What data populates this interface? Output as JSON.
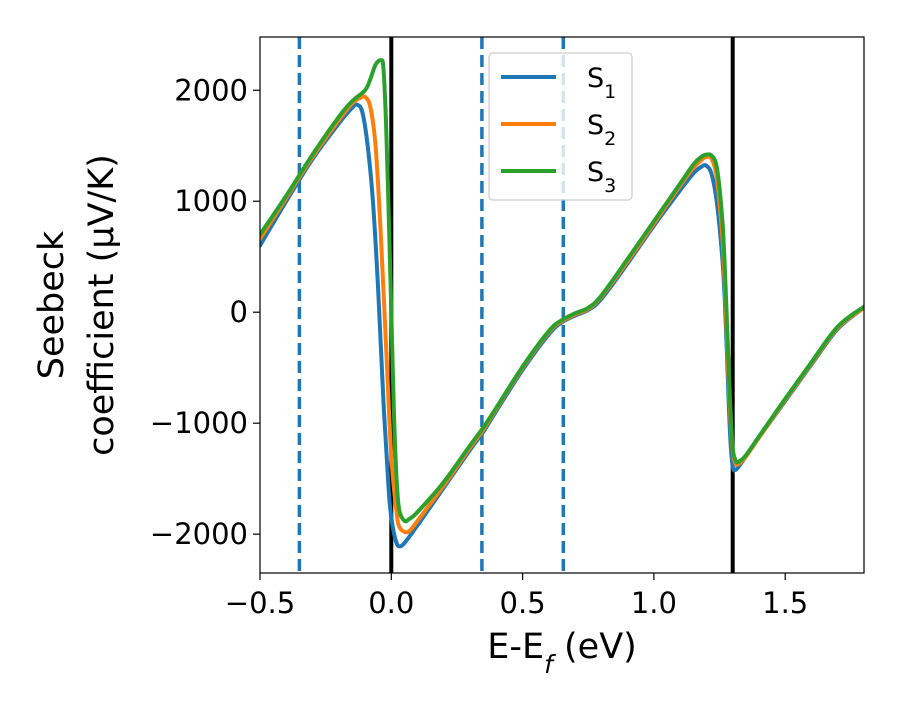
{
  "chart_data": {
    "type": "line",
    "xlabel": "E-E_f (eV)",
    "ylabel_line1": "Seebeck",
    "ylabel_line2": "coefficient  (μV/K)",
    "xlim": [
      -0.5,
      1.8
    ],
    "ylim": [
      -2350,
      2480
    ],
    "xticks": [
      -0.5,
      0.0,
      0.5,
      1.0,
      1.5
    ],
    "xtick_labels": [
      "−0.5",
      "0.0",
      "0.5",
      "1.0",
      "1.5"
    ],
    "yticks": [
      -2000,
      -1000,
      0,
      1000,
      2000
    ],
    "ytick_labels": [
      "−2000",
      "−1000",
      "0",
      "1000",
      "2000"
    ],
    "grid": false,
    "legend_position": "top-center",
    "series": [
      {
        "name": "S_1",
        "color": "#1f77b4",
        "x": [
          -0.5,
          -0.4,
          -0.3,
          -0.2,
          -0.15,
          -0.13,
          -0.11,
          -0.09,
          -0.07,
          -0.05,
          -0.03,
          -0.01,
          0.0,
          0.01,
          0.02,
          0.03,
          0.05,
          0.1,
          0.2,
          0.3,
          0.35,
          0.4,
          0.5,
          0.6,
          0.65,
          0.7,
          0.75,
          0.8,
          0.9,
          1.0,
          1.1,
          1.15,
          1.18,
          1.2,
          1.22,
          1.24,
          1.26,
          1.27,
          1.28,
          1.29,
          1.3,
          1.31,
          1.32,
          1.35,
          1.4,
          1.5,
          1.6,
          1.7,
          1.8
        ],
        "y": [
          600,
          1000,
          1380,
          1700,
          1840,
          1870,
          1800,
          1500,
          1000,
          200,
          -800,
          -1600,
          -1850,
          -1990,
          -2080,
          -2110,
          -2080,
          -1920,
          -1580,
          -1240,
          -1080,
          -890,
          -520,
          -200,
          -90,
          -30,
          20,
          120,
          440,
          780,
          1100,
          1250,
          1310,
          1320,
          1240,
          980,
          500,
          100,
          -500,
          -1100,
          -1390,
          -1420,
          -1400,
          -1300,
          -1130,
          -800,
          -470,
          -150,
          40
        ]
      },
      {
        "name": "S_2",
        "color": "#ff7f0e",
        "x": [
          -0.5,
          -0.4,
          -0.3,
          -0.2,
          -0.15,
          -0.12,
          -0.1,
          -0.08,
          -0.06,
          -0.04,
          -0.02,
          0.0,
          0.02,
          0.03,
          0.05,
          0.07,
          0.1,
          0.2,
          0.3,
          0.35,
          0.4,
          0.5,
          0.6,
          0.65,
          0.7,
          0.75,
          0.8,
          0.9,
          1.0,
          1.1,
          1.15,
          1.18,
          1.2,
          1.22,
          1.24,
          1.26,
          1.27,
          1.28,
          1.29,
          1.3,
          1.31,
          1.32,
          1.35,
          1.4,
          1.5,
          1.6,
          1.7,
          1.8
        ],
        "y": [
          660,
          1030,
          1400,
          1730,
          1880,
          1930,
          1940,
          1850,
          1500,
          700,
          -300,
          -1300,
          -1800,
          -1930,
          -1980,
          -1970,
          -1880,
          -1560,
          -1220,
          -1060,
          -870,
          -500,
          -180,
          -80,
          -20,
          30,
          140,
          460,
          800,
          1140,
          1300,
          1370,
          1400,
          1380,
          1200,
          700,
          250,
          -350,
          -900,
          -1250,
          -1360,
          -1370,
          -1300,
          -1130,
          -790,
          -460,
          -140,
          40
        ]
      },
      {
        "name": "S_3",
        "color": "#2ca02c",
        "x": [
          -0.5,
          -0.4,
          -0.3,
          -0.2,
          -0.15,
          -0.1,
          -0.08,
          -0.06,
          -0.04,
          -0.03,
          -0.02,
          -0.01,
          0.0,
          0.01,
          0.02,
          0.03,
          0.05,
          0.07,
          0.1,
          0.2,
          0.3,
          0.35,
          0.4,
          0.5,
          0.6,
          0.65,
          0.7,
          0.75,
          0.8,
          0.9,
          1.0,
          1.1,
          1.15,
          1.18,
          1.2,
          1.22,
          1.24,
          1.26,
          1.27,
          1.28,
          1.29,
          1.3,
          1.31,
          1.32,
          1.35,
          1.4,
          1.5,
          1.6,
          1.7,
          1.8
        ],
        "y": [
          700,
          1050,
          1420,
          1760,
          1900,
          2000,
          2100,
          2230,
          2270,
          2200,
          1700,
          900,
          0,
          -900,
          -1500,
          -1780,
          -1880,
          -1860,
          -1800,
          -1530,
          -1200,
          -1040,
          -860,
          -490,
          -170,
          -70,
          -10,
          40,
          150,
          480,
          820,
          1160,
          1330,
          1400,
          1420,
          1410,
          1300,
          850,
          400,
          -200,
          -800,
          -1220,
          -1330,
          -1350,
          -1290,
          -1120,
          -780,
          -450,
          -130,
          50
        ]
      }
    ],
    "vlines": [
      {
        "x": -0.35,
        "style": "dashed",
        "color": "#1f77b4"
      },
      {
        "x": 0.0,
        "style": "solid",
        "color": "#000000"
      },
      {
        "x": 0.345,
        "style": "dashed",
        "color": "#1f77b4"
      },
      {
        "x": 0.655,
        "style": "dashed",
        "color": "#1f77b4"
      },
      {
        "x": 1.3,
        "style": "solid",
        "color": "#000000"
      }
    ]
  }
}
